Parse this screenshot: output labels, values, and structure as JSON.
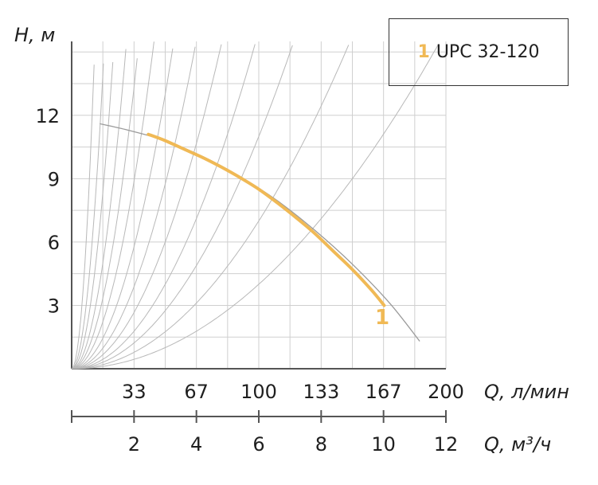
{
  "chart_data": {
    "type": "line",
    "y_axis": {
      "label": "H, м",
      "ticks": [
        3,
        6,
        9,
        12
      ],
      "range": [
        0,
        15.5
      ]
    },
    "x_axis_primary": {
      "label": "Q, л/мин",
      "ticks": [
        "33",
        "67",
        "100",
        "133",
        "167",
        "200"
      ],
      "range": [
        0,
        200
      ]
    },
    "x_axis_secondary": {
      "label": "Q, м³/ч",
      "ticks": [
        "2",
        "4",
        "6",
        "8",
        "10",
        "12"
      ],
      "range": [
        0,
        12
      ]
    },
    "series": [
      {
        "name": "UPC 32-120",
        "marker": "1",
        "color": "#f0b955",
        "x": [
          41,
          50,
          60,
          70,
          80,
          90,
          100,
          110,
          120,
          130,
          140,
          150,
          160,
          167
        ],
        "y": [
          11.1,
          10.8,
          10.4,
          10.0,
          9.55,
          9.05,
          8.5,
          7.85,
          7.15,
          6.4,
          5.55,
          4.7,
          3.75,
          3.0
        ]
      }
    ],
    "reference_curve": {
      "color": "#9a9a9a",
      "x": [
        15,
        30,
        50,
        70,
        90,
        110,
        130,
        150,
        170,
        186
      ],
      "y": [
        11.6,
        11.3,
        10.8,
        10.05,
        9.1,
        7.95,
        6.55,
        4.95,
        3.1,
        1.3
      ]
    },
    "system_curves": {
      "color": "#b8b8b8",
      "count": 13
    },
    "grid": true
  },
  "legend": {
    "number": "1",
    "label": "UPC 32-120"
  }
}
